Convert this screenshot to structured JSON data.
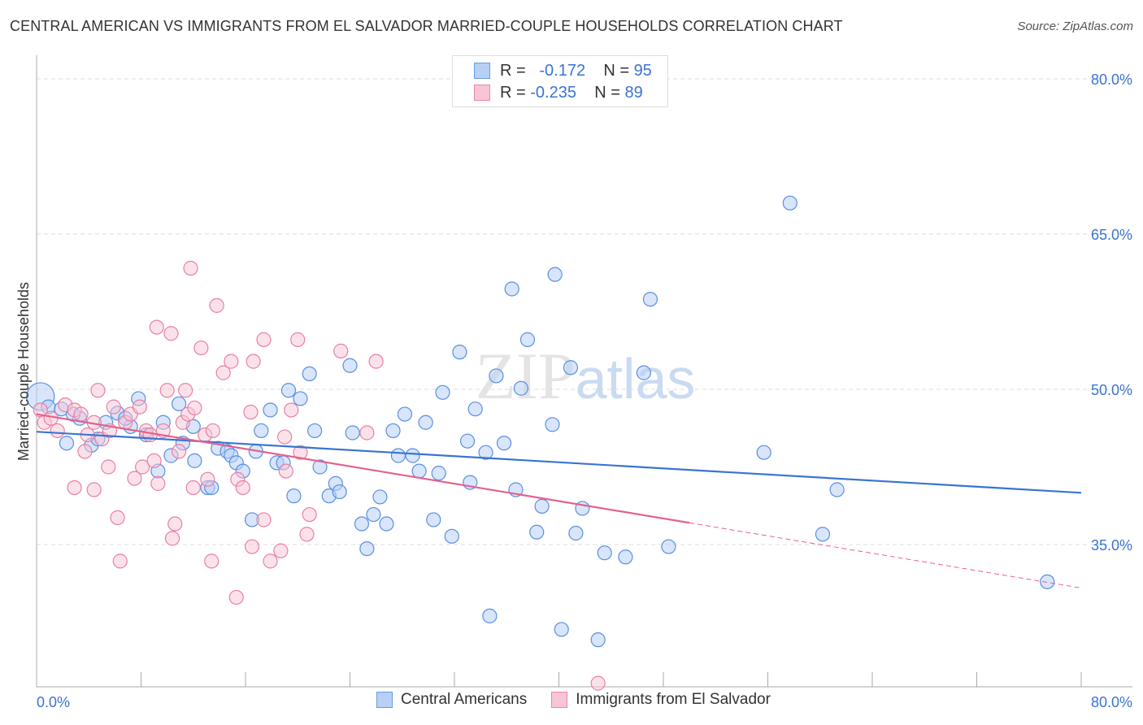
{
  "title": "CENTRAL AMERICAN VS IMMIGRANTS FROM EL SALVADOR MARRIED-COUPLE HOUSEHOLDS CORRELATION CHART",
  "source": "Source: ZipAtlas.com",
  "watermark": "ZIPatlas",
  "legend": {
    "r_label": "R =",
    "n_label": "N =",
    "series": [
      {
        "name": "Central Americans",
        "r": "-0.172",
        "n": "95",
        "fill": "#b8d0f5",
        "stroke": "#6b9be0"
      },
      {
        "name": "Immigrants from El Salvador",
        "r": "-0.235",
        "n": "89",
        "fill": "#f8c5d5",
        "stroke": "#e888a8"
      }
    ]
  },
  "chart_data": {
    "type": "scatter",
    "title": "CENTRAL AMERICAN VS IMMIGRANTS FROM EL SALVADOR MARRIED-COUPLE HOUSEHOLDS CORRELATION CHART",
    "xlabel": "",
    "ylabel": "Married-couple Households",
    "xlim": [
      0,
      80
    ],
    "ylim": [
      21.25,
      82.5
    ],
    "x_tick_labels": [
      "0.0%",
      "80.0%"
    ],
    "y_ticks": [
      35,
      50,
      65,
      80
    ],
    "y_tick_labels": [
      "35.0%",
      "50.0%",
      "65.0%",
      "80.0%"
    ],
    "grid": true,
    "legend_position": "top-center",
    "series": [
      {
        "name": "Central Americans",
        "color": "#3a74d1",
        "trend": {
          "x": [
            0,
            80
          ],
          "y": [
            45.9,
            40.0
          ]
        },
        "points": [
          [
            0.3,
            49.3,
            "big"
          ],
          [
            2.3,
            44.8
          ],
          [
            3.3,
            47.2
          ],
          [
            4.2,
            44.6
          ],
          [
            5.3,
            46.8
          ],
          [
            6.2,
            47.7
          ],
          [
            7.2,
            46.4
          ],
          [
            7.8,
            49.1
          ],
          [
            8.4,
            45.6
          ],
          [
            9.7,
            46.8
          ],
          [
            10.3,
            43.6
          ],
          [
            9.3,
            42.1
          ],
          [
            10.9,
            48.6
          ],
          [
            11.2,
            44.8
          ],
          [
            12.0,
            46.4
          ],
          [
            12.1,
            43.1
          ],
          [
            13.1,
            40.5
          ],
          [
            13.4,
            40.5
          ],
          [
            13.9,
            44.3
          ],
          [
            14.6,
            44.0
          ],
          [
            14.9,
            43.6
          ],
          [
            15.3,
            42.9
          ],
          [
            15.8,
            42.1
          ],
          [
            16.8,
            44.0
          ],
          [
            16.5,
            37.4
          ],
          [
            17.2,
            46.0
          ],
          [
            17.9,
            48.0
          ],
          [
            18.4,
            42.9
          ],
          [
            18.9,
            42.9
          ],
          [
            19.3,
            49.9
          ],
          [
            19.7,
            39.7
          ],
          [
            20.2,
            49.1
          ],
          [
            20.9,
            51.5
          ],
          [
            21.3,
            46.0
          ],
          [
            21.7,
            42.5
          ],
          [
            22.4,
            39.7
          ],
          [
            22.9,
            40.9
          ],
          [
            23.2,
            40.1
          ],
          [
            24.0,
            52.3
          ],
          [
            24.2,
            45.8
          ],
          [
            24.9,
            37.0
          ],
          [
            25.3,
            34.6
          ],
          [
            25.8,
            37.9
          ],
          [
            26.3,
            39.6
          ],
          [
            26.8,
            37.0
          ],
          [
            27.3,
            46.0
          ],
          [
            27.7,
            43.6
          ],
          [
            28.2,
            47.6
          ],
          [
            28.8,
            43.6
          ],
          [
            29.3,
            42.1
          ],
          [
            29.8,
            46.8
          ],
          [
            30.4,
            37.4
          ],
          [
            30.8,
            41.9
          ],
          [
            31.1,
            49.7
          ],
          [
            31.8,
            35.8
          ],
          [
            32.4,
            53.6
          ],
          [
            33.0,
            45.0
          ],
          [
            33.6,
            48.1
          ],
          [
            33.2,
            41.0
          ],
          [
            34.4,
            43.9
          ],
          [
            34.7,
            28.1
          ],
          [
            35.2,
            51.3
          ],
          [
            35.8,
            44.8
          ],
          [
            36.4,
            59.7
          ],
          [
            36.7,
            40.3
          ],
          [
            37.1,
            50.1
          ],
          [
            37.6,
            54.8
          ],
          [
            38.3,
            36.2
          ],
          [
            38.7,
            38.7
          ],
          [
            39.7,
            61.1
          ],
          [
            39.5,
            46.6
          ],
          [
            40.2,
            26.8
          ],
          [
            40.9,
            52.1
          ],
          [
            41.3,
            36.1
          ],
          [
            41.8,
            38.5
          ],
          [
            43.0,
            25.8
          ],
          [
            43.5,
            34.2
          ],
          [
            45.1,
            33.8
          ],
          [
            46.5,
            51.6
          ],
          [
            47.0,
            58.7
          ],
          [
            48.4,
            34.8
          ],
          [
            55.7,
            43.9
          ],
          [
            57.7,
            68.0
          ],
          [
            60.2,
            36.0
          ],
          [
            61.3,
            40.3
          ],
          [
            77.4,
            31.4
          ],
          [
            0.9,
            48.3
          ],
          [
            1.9,
            48.1
          ],
          [
            2.8,
            47.6
          ],
          [
            4.7,
            45.2
          ],
          [
            6.8,
            47.2
          ]
        ]
      },
      {
        "name": "Immigrants from El Salvador",
        "color": "#e2628e",
        "trend": {
          "x": [
            0,
            50
          ],
          "y": [
            47.6,
            37.1
          ]
        },
        "trend_dashed": {
          "x": [
            50,
            80
          ],
          "y": [
            37.1,
            30.8
          ]
        },
        "points": [
          [
            0.3,
            48.0
          ],
          [
            0.6,
            46.8
          ],
          [
            1.1,
            47.2
          ],
          [
            1.6,
            46.0
          ],
          [
            2.2,
            48.5
          ],
          [
            2.9,
            48.0
          ],
          [
            3.4,
            47.6
          ],
          [
            3.9,
            45.6
          ],
          [
            4.4,
            46.8
          ],
          [
            4.7,
            49.9
          ],
          [
            5.0,
            45.2
          ],
          [
            5.5,
            42.5
          ],
          [
            5.9,
            48.3
          ],
          [
            6.2,
            37.6
          ],
          [
            6.4,
            33.4
          ],
          [
            6.8,
            46.8
          ],
          [
            7.2,
            47.6
          ],
          [
            7.5,
            41.4
          ],
          [
            7.9,
            48.3
          ],
          [
            8.1,
            42.5
          ],
          [
            8.4,
            46.0
          ],
          [
            9.0,
            43.1
          ],
          [
            9.2,
            56.0
          ],
          [
            9.3,
            40.9
          ],
          [
            10.0,
            49.9
          ],
          [
            10.3,
            55.4
          ],
          [
            10.4,
            35.6
          ],
          [
            10.6,
            37.0
          ],
          [
            10.9,
            44.0
          ],
          [
            11.2,
            46.8
          ],
          [
            11.4,
            49.9
          ],
          [
            11.6,
            47.6
          ],
          [
            11.8,
            61.7
          ],
          [
            12.0,
            40.5
          ],
          [
            12.1,
            48.2
          ],
          [
            12.6,
            54.0
          ],
          [
            12.9,
            45.6
          ],
          [
            13.1,
            41.3
          ],
          [
            13.4,
            33.4
          ],
          [
            13.5,
            46.0
          ],
          [
            13.8,
            58.1
          ],
          [
            14.3,
            51.6
          ],
          [
            14.9,
            52.7
          ],
          [
            15.3,
            29.9
          ],
          [
            15.4,
            41.3
          ],
          [
            15.8,
            40.5
          ],
          [
            16.5,
            34.8
          ],
          [
            16.4,
            47.8
          ],
          [
            16.6,
            52.7
          ],
          [
            17.4,
            54.8
          ],
          [
            17.4,
            37.4
          ],
          [
            17.9,
            33.4
          ],
          [
            18.7,
            34.4
          ],
          [
            19.0,
            45.4
          ],
          [
            19.1,
            42.1
          ],
          [
            19.5,
            48.0
          ],
          [
            20.0,
            54.8
          ],
          [
            20.2,
            43.9
          ],
          [
            20.7,
            36.0
          ],
          [
            20.9,
            37.9
          ],
          [
            23.3,
            53.7
          ],
          [
            25.3,
            45.8
          ],
          [
            26.0,
            52.7
          ],
          [
            43.0,
            21.6
          ],
          [
            2.9,
            40.5
          ],
          [
            4.4,
            40.3
          ],
          [
            3.7,
            44.0
          ],
          [
            5.6,
            46.0
          ],
          [
            8.7,
            45.6
          ],
          [
            9.7,
            46.0
          ]
        ]
      }
    ]
  }
}
